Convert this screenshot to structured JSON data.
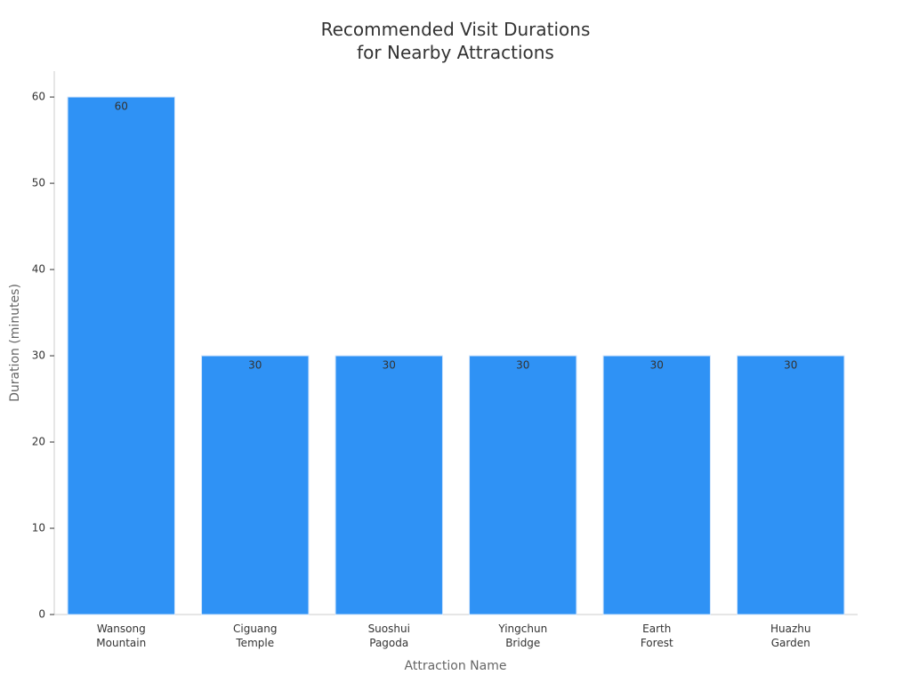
{
  "chart_data": {
    "type": "bar",
    "title": "Recommended Visit Durations\nfor Nearby Attractions",
    "x_label": "Attraction Name",
    "y_label": "Duration (minutes)",
    "categories": [
      "Wansong\nMountain",
      "Ciguang\nTemple",
      "Suoshui\nPagoda",
      "Yingchun\nBridge",
      "Earth\nForest",
      "Huazhu\nGarden"
    ],
    "values": [
      60,
      30,
      30,
      30,
      30,
      30
    ],
    "color": "#2f92f5",
    "ylim": [
      0,
      63
    ],
    "yticks": [
      0,
      10,
      20,
      30,
      40,
      50,
      60
    ],
    "grid": false
  }
}
